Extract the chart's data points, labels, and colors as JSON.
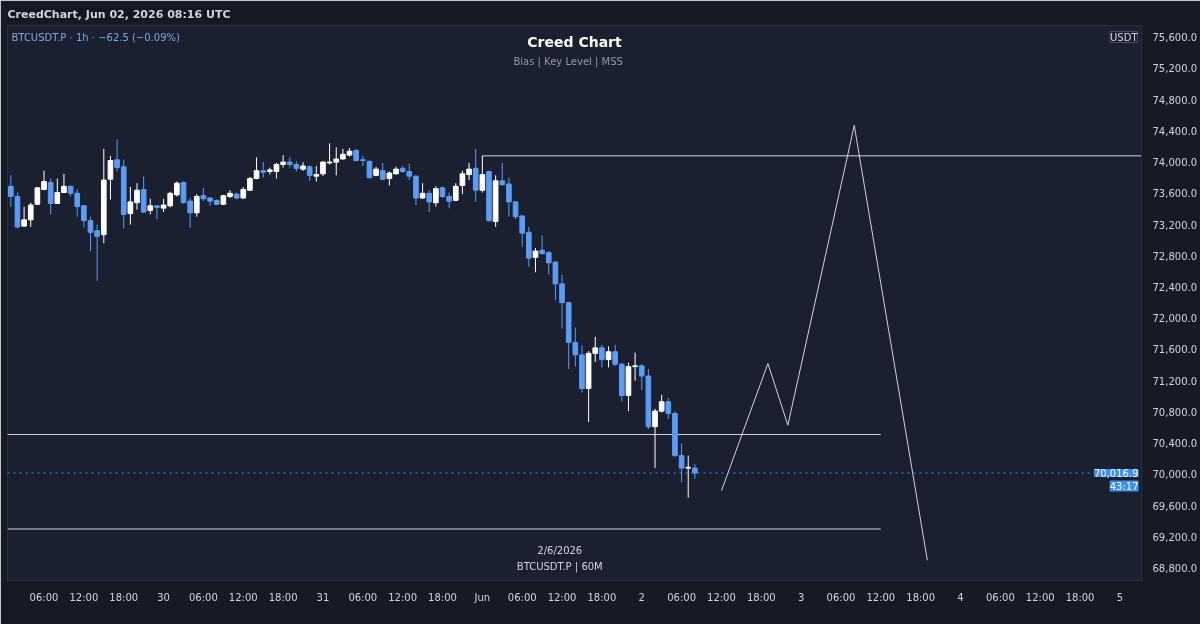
{
  "chart_data": {
    "type": "candlestick",
    "title": "Creed Chart",
    "subtitle": "Bias  |  Key Level  |  MSS",
    "x": [
      "2026-05-29T01:00",
      "2026-05-29T02:00",
      "2026-05-29T03:00",
      "2026-05-29T04:00",
      "2026-05-29T05:00",
      "2026-05-29T06:00",
      "2026-05-29T07:00",
      "2026-05-29T08:00",
      "2026-05-29T09:00",
      "2026-05-29T10:00",
      "2026-05-29T11:00",
      "2026-05-29T12:00",
      "2026-05-29T13:00",
      "2026-05-29T14:00",
      "2026-05-29T15:00",
      "2026-05-29T16:00",
      "2026-05-29T17:00",
      "2026-05-29T18:00",
      "2026-05-29T19:00",
      "2026-05-29T20:00",
      "2026-05-29T21:00",
      "2026-05-29T22:00",
      "2026-05-29T23:00",
      "2026-05-30T00:00",
      "2026-05-30T01:00",
      "2026-05-30T02:00",
      "2026-05-30T03:00",
      "2026-05-30T04:00",
      "2026-05-30T05:00",
      "2026-05-30T06:00",
      "2026-05-30T07:00",
      "2026-05-30T08:00",
      "2026-05-30T09:00",
      "2026-05-30T10:00",
      "2026-05-30T11:00",
      "2026-05-30T12:00",
      "2026-05-30T13:00",
      "2026-05-30T14:00",
      "2026-05-30T15:00",
      "2026-05-30T16:00",
      "2026-05-30T17:00",
      "2026-05-30T18:00",
      "2026-05-30T19:00",
      "2026-05-30T20:00",
      "2026-05-30T21:00",
      "2026-05-30T22:00",
      "2026-05-30T23:00",
      "2026-05-31T00:00",
      "2026-05-31T01:00",
      "2026-05-31T02:00",
      "2026-05-31T03:00",
      "2026-05-31T04:00",
      "2026-05-31T05:00",
      "2026-05-31T06:00",
      "2026-05-31T07:00",
      "2026-05-31T08:00",
      "2026-05-31T09:00",
      "2026-05-31T10:00",
      "2026-05-31T11:00",
      "2026-05-31T12:00",
      "2026-05-31T13:00",
      "2026-05-31T14:00",
      "2026-05-31T15:00",
      "2026-05-31T16:00",
      "2026-05-31T17:00",
      "2026-05-31T18:00",
      "2026-05-31T19:00",
      "2026-05-31T20:00",
      "2026-05-31T21:00",
      "2026-05-31T22:00",
      "2026-05-31T23:00",
      "2026-06-01T00:00",
      "2026-06-01T01:00",
      "2026-06-01T02:00",
      "2026-06-01T03:00",
      "2026-06-01T04:00",
      "2026-06-01T05:00",
      "2026-06-01T06:00",
      "2026-06-01T07:00",
      "2026-06-01T08:00",
      "2026-06-01T09:00",
      "2026-06-01T10:00",
      "2026-06-01T11:00",
      "2026-06-01T12:00",
      "2026-06-01T13:00",
      "2026-06-01T14:00",
      "2026-06-01T15:00",
      "2026-06-01T16:00",
      "2026-06-01T17:00",
      "2026-06-01T18:00",
      "2026-06-01T19:00",
      "2026-06-01T20:00",
      "2026-06-01T21:00",
      "2026-06-01T22:00",
      "2026-06-01T23:00",
      "2026-06-02T00:00",
      "2026-06-02T01:00",
      "2026-06-02T02:00",
      "2026-06-02T03:00",
      "2026-06-02T04:00",
      "2026-06-02T05:00",
      "2026-06-02T06:00",
      "2026-06-02T07:00",
      "2026-06-02T08:00"
    ],
    "ohlc": [
      [
        73690,
        73830,
        73430,
        73560
      ],
      [
        73560,
        73610,
        73150,
        73170
      ],
      [
        73180,
        73430,
        73170,
        73260
      ],
      [
        73260,
        73480,
        73170,
        73450
      ],
      [
        73460,
        73680,
        73450,
        73670
      ],
      [
        73650,
        73890,
        73640,
        73750
      ],
      [
        73740,
        73790,
        73330,
        73470
      ],
      [
        73470,
        73790,
        73470,
        73610
      ],
      [
        73610,
        73850,
        73610,
        73690
      ],
      [
        73690,
        73700,
        73560,
        73600
      ],
      [
        73600,
        73650,
        73300,
        73430
      ],
      [
        73440,
        73450,
        73170,
        73250
      ],
      [
        73250,
        73300,
        72860,
        73100
      ],
      [
        73120,
        73200,
        72480,
        73050
      ],
      [
        73070,
        74170,
        72960,
        73770
      ],
      [
        73780,
        74080,
        73520,
        74020
      ],
      [
        74030,
        74290,
        73880,
        73930
      ],
      [
        73940,
        74030,
        73150,
        73330
      ],
      [
        73340,
        73680,
        73200,
        73490
      ],
      [
        73480,
        73730,
        73390,
        73640
      ],
      [
        73650,
        73820,
        73350,
        73360
      ],
      [
        73380,
        73530,
        73330,
        73440
      ],
      [
        73440,
        73450,
        73270,
        73420
      ],
      [
        73410,
        73530,
        73360,
        73450
      ],
      [
        73440,
        73620,
        73420,
        73600
      ],
      [
        73580,
        73750,
        73560,
        73730
      ],
      [
        73740,
        73750,
        73470,
        73480
      ],
      [
        73500,
        73540,
        73160,
        73350
      ],
      [
        73350,
        73590,
        73300,
        73560
      ],
      [
        73570,
        73670,
        73500,
        73530
      ],
      [
        73540,
        73550,
        73440,
        73500
      ],
      [
        73510,
        73520,
        73450,
        73460
      ],
      [
        73460,
        73580,
        73450,
        73570
      ],
      [
        73560,
        73640,
        73540,
        73600
      ],
      [
        73590,
        73610,
        73520,
        73540
      ],
      [
        73540,
        73680,
        73530,
        73650
      ],
      [
        73640,
        73810,
        73630,
        73790
      ],
      [
        73790,
        74060,
        73780,
        73890
      ],
      [
        73890,
        74000,
        73800,
        73870
      ],
      [
        73880,
        73930,
        73840,
        73900
      ],
      [
        73880,
        73990,
        73790,
        73970
      ],
      [
        73970,
        74090,
        73930,
        74000
      ],
      [
        74000,
        74060,
        73930,
        73970
      ],
      [
        73970,
        74010,
        73880,
        73920
      ],
      [
        73910,
        74000,
        73890,
        73950
      ],
      [
        73940,
        73960,
        73760,
        73830
      ],
      [
        73820,
        73950,
        73750,
        73840
      ],
      [
        73850,
        74010,
        73820,
        74000
      ],
      [
        73990,
        74240,
        73970,
        74000
      ],
      [
        74000,
        74190,
        73830,
        74040
      ],
      [
        74040,
        74170,
        74030,
        74100
      ],
      [
        74090,
        74180,
        74070,
        74140
      ],
      [
        74150,
        74170,
        74010,
        74020
      ],
      [
        74030,
        74080,
        73950,
        74020
      ],
      [
        74010,
        74020,
        73790,
        73800
      ],
      [
        73830,
        73940,
        73820,
        73910
      ],
      [
        73890,
        73990,
        73770,
        73780
      ],
      [
        73790,
        73880,
        73700,
        73860
      ],
      [
        73850,
        73940,
        73840,
        73910
      ],
      [
        73920,
        73950,
        73860,
        73880
      ],
      [
        73880,
        73980,
        73770,
        73820
      ],
      [
        73820,
        73830,
        73450,
        73540
      ],
      [
        73540,
        73730,
        73530,
        73600
      ],
      [
        73600,
        73640,
        73360,
        73490
      ],
      [
        73480,
        73690,
        73430,
        73660
      ],
      [
        73670,
        73690,
        73540,
        73560
      ],
      [
        73560,
        73610,
        73410,
        73500
      ],
      [
        73510,
        73730,
        73500,
        73690
      ],
      [
        73700,
        73890,
        73590,
        73850
      ],
      [
        73840,
        73990,
        73770,
        73910
      ],
      [
        73920,
        74170,
        73490,
        73640
      ],
      [
        73640,
        74080,
        73610,
        73840
      ],
      [
        73880,
        73890,
        73240,
        73250
      ],
      [
        73240,
        73830,
        73170,
        73760
      ],
      [
        73760,
        73990,
        73700,
        73710
      ],
      [
        73720,
        73800,
        73300,
        73490
      ],
      [
        73490,
        73500,
        73270,
        73300
      ],
      [
        73310,
        73320,
        72920,
        73090
      ],
      [
        73100,
        73170,
        72660,
        72770
      ],
      [
        72780,
        72900,
        72590,
        72860
      ],
      [
        72870,
        73060,
        72810,
        72830
      ],
      [
        72840,
        72860,
        72560,
        72710
      ],
      [
        72720,
        72730,
        72230,
        72440
      ],
      [
        72440,
        72560,
        71870,
        72200
      ],
      [
        72200,
        72210,
        71350,
        71690
      ],
      [
        71690,
        71880,
        71380,
        71530
      ],
      [
        71530,
        71650,
        71050,
        71100
      ],
      [
        71100,
        71580,
        70670,
        71550
      ],
      [
        71550,
        71760,
        71440,
        71620
      ],
      [
        71620,
        71660,
        71370,
        71470
      ],
      [
        71470,
        71640,
        71370,
        71570
      ],
      [
        71570,
        71660,
        71390,
        71410
      ],
      [
        71410,
        71430,
        70930,
        71010
      ],
      [
        71010,
        71430,
        70810,
        71380
      ],
      [
        71380,
        71560,
        71200,
        71390
      ],
      [
        71390,
        71410,
        71080,
        71260
      ],
      [
        71260,
        71350,
        70580,
        70610
      ],
      [
        70610,
        70840,
        70080,
        70810
      ],
      [
        70810,
        71020,
        70790,
        70930
      ],
      [
        70930,
        70980,
        70710,
        70780
      ],
      [
        70780,
        70810,
        70220,
        70240
      ],
      [
        70240,
        70400,
        69900,
        70080
      ],
      [
        70080,
        70240,
        69700,
        70090
      ],
      [
        70080,
        70130,
        69940,
        70016.9
      ]
    ],
    "colors": [
      "#5b9cf6",
      "#5b9cf6",
      "#ffffff",
      "#ffffff",
      "#ffffff",
      "#ffffff",
      "#5b9cf6",
      "#ffffff",
      "#ffffff",
      "#5b9cf6",
      "#5b9cf6",
      "#5b9cf6",
      "#5b9cf6",
      "#5b9cf6",
      "#ffffff",
      "#ffffff",
      "#5b9cf6",
      "#5b9cf6",
      "#ffffff",
      "#ffffff",
      "#5b9cf6",
      "#ffffff",
      "#5b9cf6",
      "#ffffff",
      "#ffffff",
      "#ffffff",
      "#5b9cf6",
      "#5b9cf6",
      "#ffffff",
      "#5b9cf6",
      "#5b9cf6",
      "#5b9cf6",
      "#ffffff",
      "#ffffff",
      "#5b9cf6",
      "#ffffff",
      "#ffffff",
      "#ffffff",
      "#5b9cf6",
      "#ffffff",
      "#ffffff",
      "#ffffff",
      "#5b9cf6",
      "#5b9cf6",
      "#ffffff",
      "#5b9cf6",
      "#ffffff",
      "#ffffff",
      "#ffffff",
      "#ffffff",
      "#ffffff",
      "#ffffff",
      "#5b9cf6",
      "#5b9cf6",
      "#5b9cf6",
      "#ffffff",
      "#5b9cf6",
      "#ffffff",
      "#ffffff",
      "#5b9cf6",
      "#5b9cf6",
      "#5b9cf6",
      "#ffffff",
      "#5b9cf6",
      "#ffffff",
      "#5b9cf6",
      "#5b9cf6",
      "#ffffff",
      "#ffffff",
      "#ffffff",
      "#5b9cf6",
      "#ffffff",
      "#5b9cf6",
      "#ffffff",
      "#5b9cf6",
      "#5b9cf6",
      "#5b9cf6",
      "#5b9cf6",
      "#5b9cf6",
      "#ffffff",
      "#5b9cf6",
      "#5b9cf6",
      "#5b9cf6",
      "#5b9cf6",
      "#5b9cf6",
      "#5b9cf6",
      "#5b9cf6",
      "#ffffff",
      "#ffffff",
      "#5b9cf6",
      "#ffffff",
      "#5b9cf6",
      "#5b9cf6",
      "#ffffff",
      "#ffffff",
      "#5b9cf6",
      "#5b9cf6",
      "#ffffff",
      "#ffffff",
      "#5b9cf6",
      "#5b9cf6",
      "#5b9cf6",
      "#ffffff",
      "#5b9cf6"
    ],
    "series": [
      {
        "type": "line",
        "color": "#d1d4dc",
        "x": [
          "2026-06-01T00:00",
          "2026-06-05T03:15"
        ],
        "values": [
          74080,
          74080
        ]
      },
      {
        "type": "line",
        "color": "#d1d4dc",
        "x": [
          "2026-05-29T00:30",
          "2026-06-03T12:00"
        ],
        "values": [
          70510,
          70510
        ]
      },
      {
        "type": "line",
        "color": "#d1d4dc",
        "x": [
          "2026-05-29T00:30",
          "2026-06-03T12:00"
        ],
        "values": [
          69300,
          69300
        ]
      },
      {
        "type": "line",
        "color": "#d1d4dc",
        "x": [
          "2026-06-02T12:00",
          "2026-06-02T19:00",
          "2026-06-02T22:00",
          "2026-06-03T08:00",
          "2026-06-03T19:00"
        ],
        "values": [
          69790,
          71420,
          70630,
          74470,
          68900
        ]
      }
    ],
    "ref_lines": [
      {
        "axis": "y",
        "value": 70016.9,
        "label": "70,016.9",
        "color": "#3d8ff0",
        "line_style": "dotted"
      }
    ],
    "annotations": [
      "CreedChart, Jun 02, 2026 08:16 UTC",
      "BTCUSDT.P · 1h · −62.5 (−0.09%)",
      "USDT",
      "43:17",
      "2/6/2026",
      "BTCUSDT.P | 60M"
    ],
    "xlim": [
      "2026-05-29T00:30",
      "2026-06-05T03:15"
    ],
    "ylim": [
      68640,
      75750
    ],
    "xticks": [
      {
        "value": "2026-05-29T06:00",
        "label": "06:00"
      },
      {
        "value": "2026-05-29T12:00",
        "label": "12:00"
      },
      {
        "value": "2026-05-29T18:00",
        "label": "18:00"
      },
      {
        "value": "2026-05-30T00:00",
        "label": "30"
      },
      {
        "value": "2026-05-30T06:00",
        "label": "06:00"
      },
      {
        "value": "2026-05-30T12:00",
        "label": "12:00"
      },
      {
        "value": "2026-05-30T18:00",
        "label": "18:00"
      },
      {
        "value": "2026-05-31T00:00",
        "label": "31"
      },
      {
        "value": "2026-05-31T06:00",
        "label": "06:00"
      },
      {
        "value": "2026-05-31T12:00",
        "label": "12:00"
      },
      {
        "value": "2026-05-31T18:00",
        "label": "18:00"
      },
      {
        "value": "2026-06-01T00:00",
        "label": "Jun"
      },
      {
        "value": "2026-06-01T06:00",
        "label": "06:00"
      },
      {
        "value": "2026-06-01T12:00",
        "label": "12:00"
      },
      {
        "value": "2026-06-01T18:00",
        "label": "18:00"
      },
      {
        "value": "2026-06-02T00:00",
        "label": "2"
      },
      {
        "value": "2026-06-02T06:00",
        "label": "06:00"
      },
      {
        "value": "2026-06-02T12:00",
        "label": "12:00"
      },
      {
        "value": "2026-06-02T18:00",
        "label": "18:00"
      },
      {
        "value": "2026-06-03T00:00",
        "label": "3"
      },
      {
        "value": "2026-06-03T06:00",
        "label": "06:00"
      },
      {
        "value": "2026-06-03T12:00",
        "label": "12:00"
      },
      {
        "value": "2026-06-03T18:00",
        "label": "18:00"
      },
      {
        "value": "2026-06-04T00:00",
        "label": "4"
      },
      {
        "value": "2026-06-04T06:00",
        "label": "06:00"
      },
      {
        "value": "2026-06-04T12:00",
        "label": "12:00"
      },
      {
        "value": "2026-06-04T18:00",
        "label": "18:00"
      },
      {
        "value": "2026-06-05T00:00",
        "label": "5"
      }
    ],
    "yticks": [
      {
        "value": 68800,
        "label": "68,800.0"
      },
      {
        "value": 69200,
        "label": "69,200.0"
      },
      {
        "value": 69600,
        "label": "69,600.0"
      },
      {
        "value": 70000,
        "label": "70,000.0"
      },
      {
        "value": 70400,
        "label": "70,400.0"
      },
      {
        "value": 70800,
        "label": "70,800.0"
      },
      {
        "value": 71200,
        "label": "71,200.0"
      },
      {
        "value": 71600,
        "label": "71,600.0"
      },
      {
        "value": 72000,
        "label": "72,000.0"
      },
      {
        "value": 72400,
        "label": "72,400.0"
      },
      {
        "value": 72800,
        "label": "72,800.0"
      },
      {
        "value": 73200,
        "label": "73,200.0"
      },
      {
        "value": 73600,
        "label": "73,600.0"
      },
      {
        "value": 74000,
        "label": "74,000.0"
      },
      {
        "value": 74400,
        "label": "74,400.0"
      },
      {
        "value": 74800,
        "label": "74,800.0"
      },
      {
        "value": 75200,
        "label": "75,200.0"
      },
      {
        "value": 75600,
        "label": "75,600.0"
      }
    ]
  }
}
